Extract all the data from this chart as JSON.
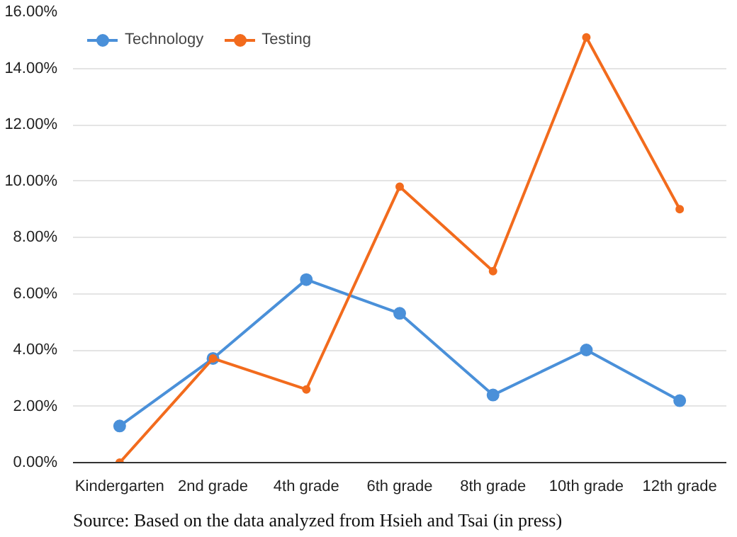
{
  "chart_data": {
    "type": "line",
    "categories": [
      "Kindergarten",
      "2nd grade",
      "4th grade",
      "6th grade",
      "8th grade",
      "10th grade",
      "12th grade"
    ],
    "series": [
      {
        "name": "Technology",
        "color": "#4a90d9",
        "values": [
          1.3,
          3.7,
          6.5,
          5.3,
          2.4,
          4.0,
          2.2
        ]
      },
      {
        "name": "Testing",
        "color": "#f26b1d",
        "values": [
          0.0,
          3.7,
          2.6,
          9.8,
          6.8,
          15.1,
          9.0
        ]
      }
    ],
    "ylim": [
      0,
      16
    ],
    "yticks": [
      {
        "value": 0,
        "label": "0.00%"
      },
      {
        "value": 2,
        "label": "2.00%"
      },
      {
        "value": 4,
        "label": "4.00%"
      },
      {
        "value": 6,
        "label": "6.00%"
      },
      {
        "value": 8,
        "label": "8.00%"
      },
      {
        "value": 10,
        "label": "10.00%"
      },
      {
        "value": 12,
        "label": "12.00%"
      },
      {
        "value": 14,
        "label": "14.00%"
      },
      {
        "value": 16,
        "label": "16.00%"
      }
    ],
    "grid": "y",
    "legend": "top left",
    "marker": "circle",
    "line_style": "solid",
    "annotations": [
      "Source: Based on the data analyzed from Hsieh and Tsai (in press)"
    ]
  }
}
